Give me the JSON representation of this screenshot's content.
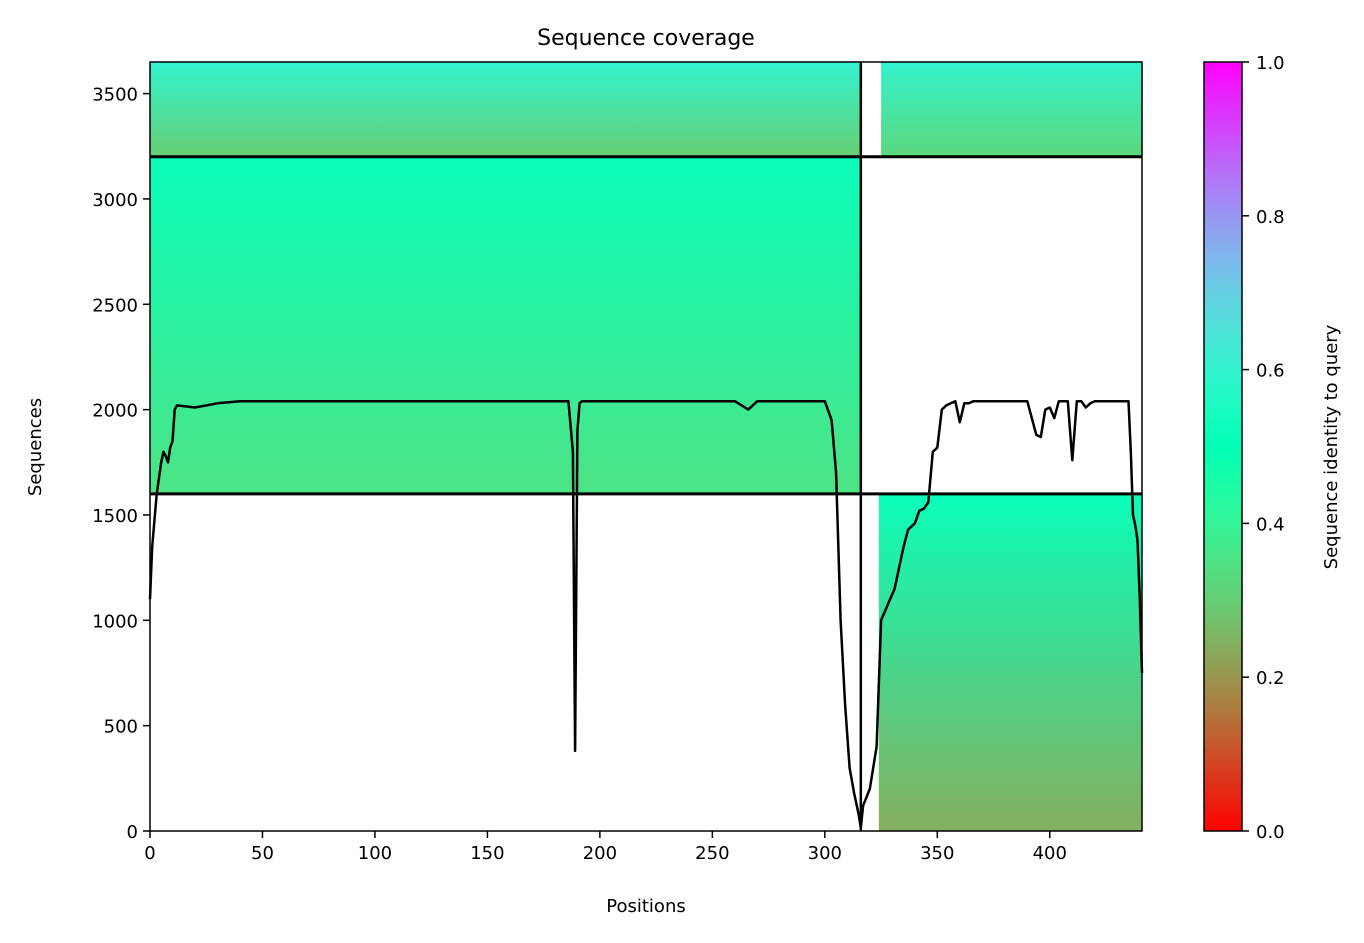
{
  "chart_data": {
    "type": "heatmap",
    "title": "Sequence coverage",
    "xlabel": "Positions",
    "ylabel": "Sequences",
    "xlim": [
      0,
      441
    ],
    "ylim": [
      0,
      3650
    ],
    "xticks": [
      0,
      50,
      100,
      150,
      200,
      250,
      300,
      350,
      400
    ],
    "yticks": [
      0,
      500,
      1000,
      1500,
      2000,
      2500,
      3000,
      3500
    ],
    "colorbar": {
      "label": "Sequence identity to query",
      "range": [
        0.0,
        1.0
      ],
      "ticks": [
        "0.0",
        "0.2",
        "0.4",
        "0.6",
        "0.8",
        "1.0"
      ],
      "colormap": "rainbow_r"
    },
    "domain_boundaries": {
      "vertical_x": [
        316
      ],
      "horizontal_y": [
        1600,
        3200
      ]
    },
    "blocks": [
      {
        "name": "block-1",
        "x": [
          0,
          316
        ],
        "y": [
          1600,
          3200
        ],
        "identity_bottom": 0.35,
        "identity_top": 0.52
      },
      {
        "name": "block-2",
        "x": [
          324,
          441
        ],
        "y": [
          0,
          1600
        ],
        "identity_bottom": 0.24,
        "identity_top": 0.52
      },
      {
        "name": "block-3",
        "x": [
          0,
          316
        ],
        "y": [
          3200,
          3650
        ],
        "identity_bottom": 0.3,
        "identity_top": 0.6
      },
      {
        "name": "block-4",
        "x": [
          325,
          441
        ],
        "y": [
          3200,
          3650
        ],
        "identity_bottom": 0.32,
        "identity_top": 0.6
      }
    ],
    "coverage_line": {
      "x": [
        0,
        1,
        3,
        5,
        6,
        7,
        8,
        9,
        10,
        11,
        12,
        20,
        30,
        40,
        50,
        60,
        80,
        100,
        120,
        150,
        170,
        186,
        188,
        189,
        190,
        191,
        192,
        200,
        220,
        240,
        260,
        266,
        270,
        280,
        290,
        300,
        303,
        305,
        307,
        309,
        311,
        313,
        315,
        316,
        317,
        320,
        323,
        325,
        327,
        329,
        331,
        333,
        335,
        337,
        340,
        342,
        344,
        346,
        348,
        350,
        352,
        354,
        356,
        358,
        360,
        362,
        364,
        366,
        370,
        380,
        390,
        392,
        394,
        396,
        398,
        400,
        402,
        404,
        406,
        408,
        410,
        412,
        414,
        416,
        418,
        420,
        430,
        435,
        436,
        437,
        438,
        439,
        440,
        441
      ],
      "y": [
        1100,
        1350,
        1600,
        1750,
        1800,
        1780,
        1750,
        1820,
        1850,
        2000,
        2020,
        2010,
        2030,
        2040,
        2040,
        2040,
        2040,
        2040,
        2040,
        2040,
        2040,
        2040,
        1800,
        380,
        1900,
        2030,
        2040,
        2040,
        2040,
        2040,
        2040,
        2000,
        2040,
        2040,
        2040,
        2040,
        1950,
        1700,
        1000,
        600,
        300,
        180,
        80,
        15,
        120,
        200,
        400,
        1000,
        1050,
        1100,
        1150,
        1250,
        1350,
        1430,
        1460,
        1520,
        1530,
        1560,
        1800,
        1820,
        2000,
        2020,
        2030,
        2040,
        1940,
        2030,
        2030,
        2040,
        2040,
        2040,
        2040,
        1960,
        1880,
        1870,
        2000,
        2010,
        1960,
        2040,
        2040,
        2040,
        1760,
        2040,
        2040,
        2010,
        2030,
        2040,
        2040,
        2040,
        1800,
        1500,
        1450,
        1380,
        1100,
        750
      ]
    }
  }
}
